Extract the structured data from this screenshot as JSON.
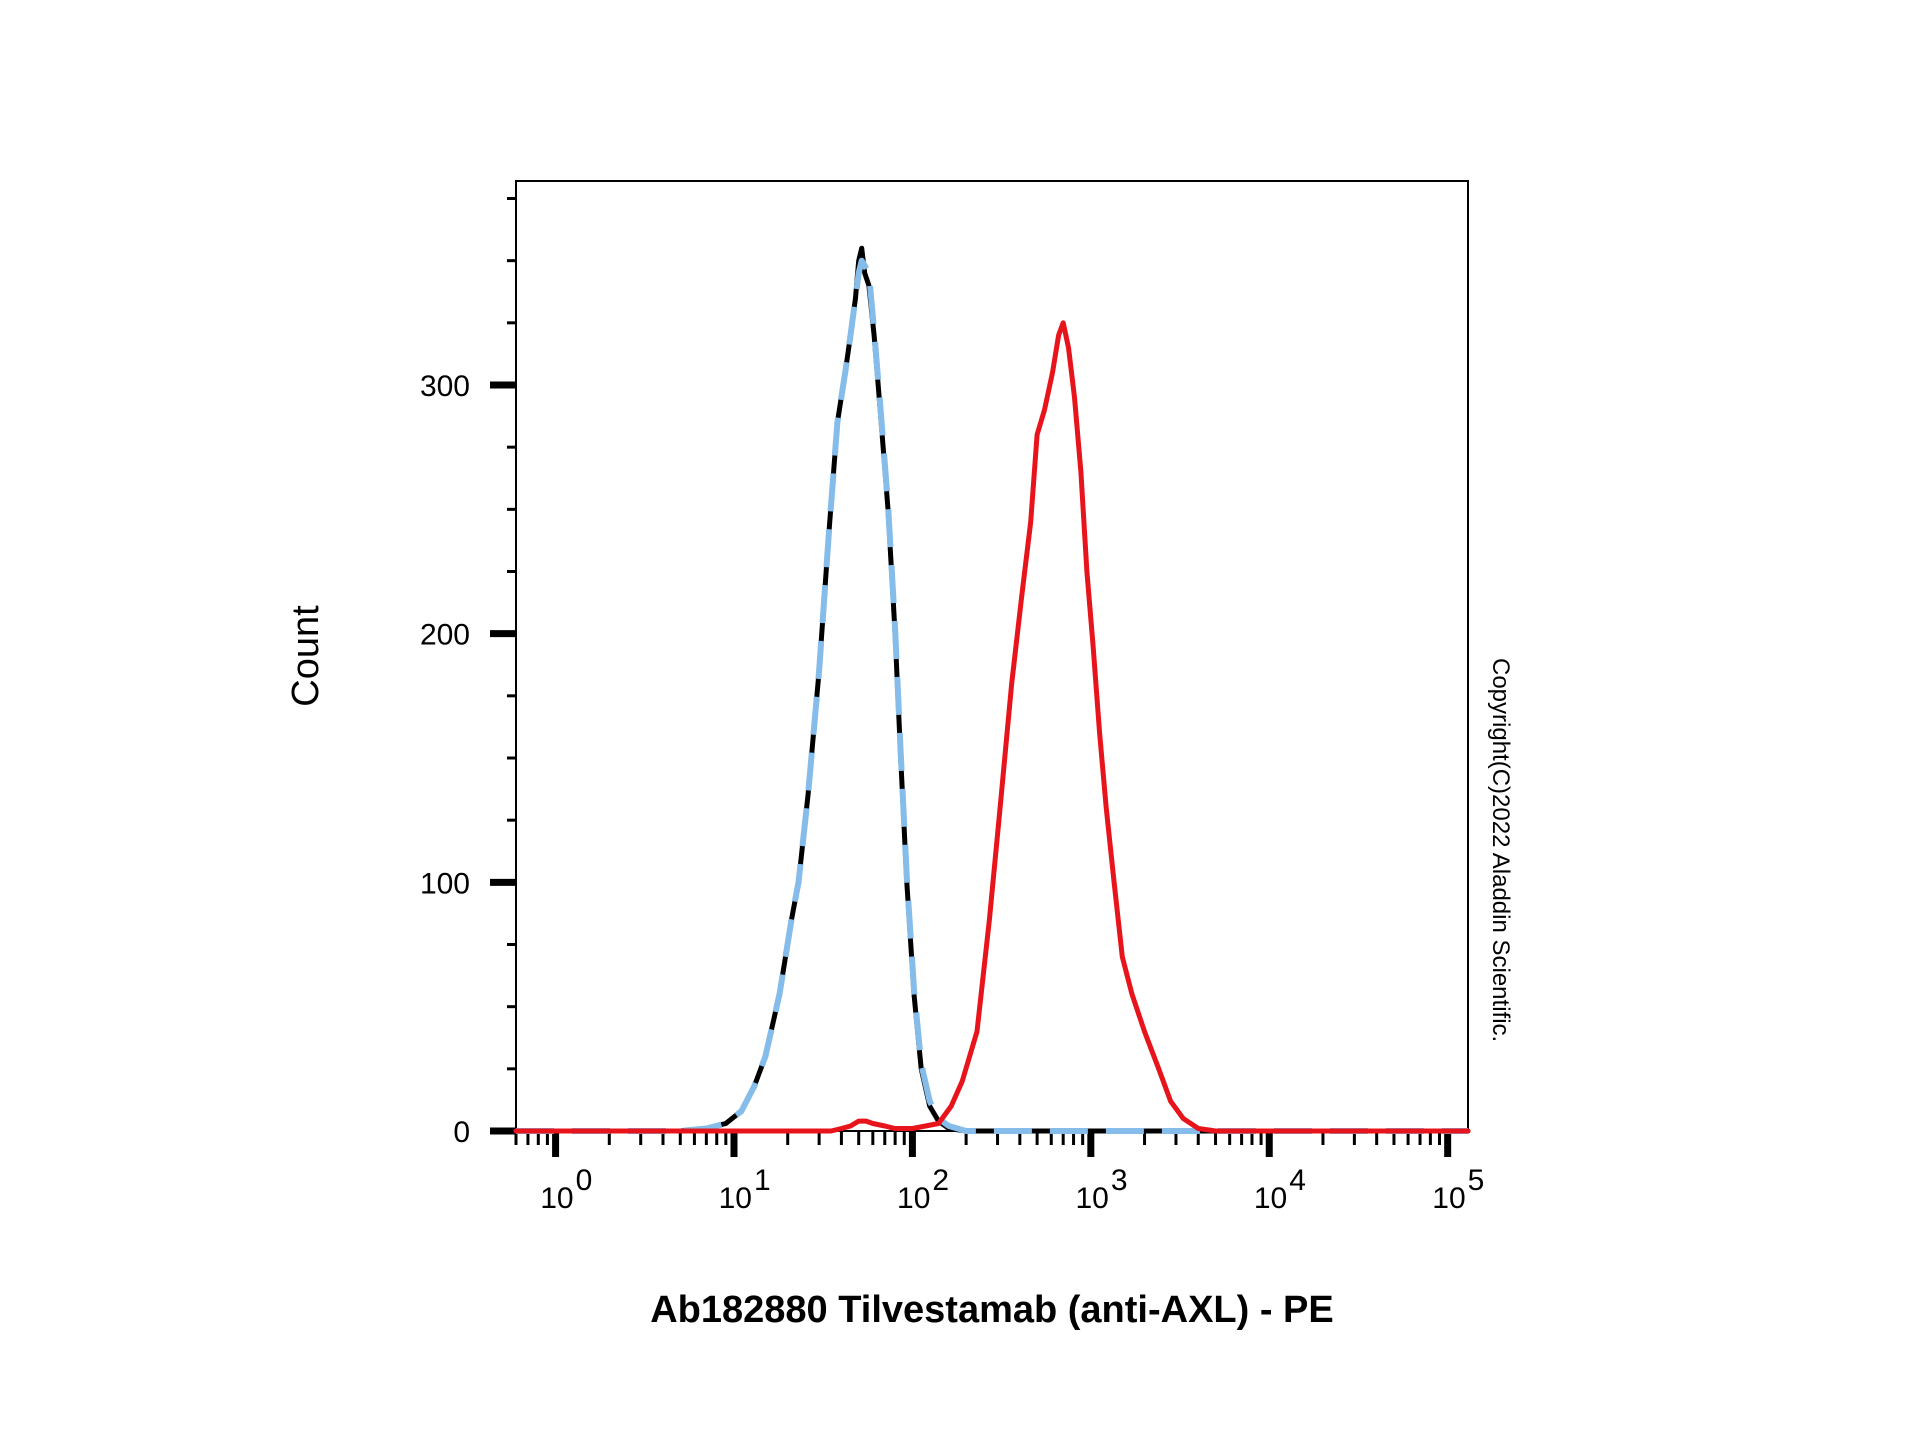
{
  "chart_data": {
    "type": "line",
    "xscale": "log",
    "xlim": [
      0.6,
      130000
    ],
    "ylim": [
      0,
      380
    ],
    "ylabel": "Count",
    "xlabel": "Ab182880 Tilvestamab (anti-AXL) - PE",
    "y_ticks": [
      0,
      100,
      200,
      300
    ],
    "x_ticks": [
      {
        "value": 1,
        "base": "10",
        "exp": "0"
      },
      {
        "value": 10,
        "base": "10",
        "exp": "1"
      },
      {
        "value": 100,
        "base": "10",
        "exp": "2"
      },
      {
        "value": 1000,
        "base": "10",
        "exp": "3"
      },
      {
        "value": 10000,
        "base": "10",
        "exp": "4"
      },
      {
        "value": 100000,
        "base": "10",
        "exp": "5"
      }
    ],
    "grid": false,
    "series": [
      {
        "color": "#000000",
        "style": "solid",
        "points": [
          [
            0.6,
            0
          ],
          [
            5,
            0
          ],
          [
            7,
            1
          ],
          [
            9,
            3
          ],
          [
            11,
            8
          ],
          [
            13,
            18
          ],
          [
            15,
            30
          ],
          [
            18,
            55
          ],
          [
            21,
            85
          ],
          [
            23,
            100
          ],
          [
            26,
            135
          ],
          [
            30,
            185
          ],
          [
            34,
            240
          ],
          [
            38,
            285
          ],
          [
            42,
            305
          ],
          [
            45,
            320
          ],
          [
            48,
            335
          ],
          [
            50,
            350
          ],
          [
            52,
            355
          ],
          [
            54,
            345
          ],
          [
            57,
            340
          ],
          [
            61,
            320
          ],
          [
            66,
            290
          ],
          [
            73,
            250
          ],
          [
            80,
            200
          ],
          [
            86,
            150
          ],
          [
            93,
            100
          ],
          [
            102,
            55
          ],
          [
            112,
            25
          ],
          [
            125,
            10
          ],
          [
            140,
            4
          ],
          [
            160,
            1
          ],
          [
            200,
            0
          ],
          [
            130000,
            0
          ]
        ]
      },
      {
        "color": "#85BCEA",
        "style": "dashed",
        "points": [
          [
            0.6,
            0
          ],
          [
            5,
            0
          ],
          [
            7,
            1
          ],
          [
            9,
            3
          ],
          [
            11,
            8
          ],
          [
            13,
            18
          ],
          [
            15,
            30
          ],
          [
            18,
            55
          ],
          [
            21,
            85
          ],
          [
            23,
            100
          ],
          [
            26,
            135
          ],
          [
            30,
            185
          ],
          [
            34,
            240
          ],
          [
            38,
            285
          ],
          [
            42,
            305
          ],
          [
            45,
            320
          ],
          [
            48,
            335
          ],
          [
            50,
            345
          ],
          [
            52,
            350
          ],
          [
            54,
            348
          ],
          [
            57,
            345
          ],
          [
            61,
            322
          ],
          [
            66,
            292
          ],
          [
            73,
            252
          ],
          [
            80,
            202
          ],
          [
            86,
            152
          ],
          [
            93,
            102
          ],
          [
            102,
            57
          ],
          [
            112,
            27
          ],
          [
            125,
            12
          ],
          [
            140,
            5
          ],
          [
            160,
            2
          ],
          [
            200,
            0
          ],
          [
            130000,
            0
          ]
        ]
      },
      {
        "color": "#E8141C",
        "style": "solid",
        "points": [
          [
            0.6,
            0
          ],
          [
            35,
            0
          ],
          [
            40,
            1
          ],
          [
            45,
            2
          ],
          [
            50,
            4
          ],
          [
            55,
            4
          ],
          [
            60,
            3
          ],
          [
            70,
            2
          ],
          [
            80,
            1
          ],
          [
            100,
            1
          ],
          [
            140,
            3
          ],
          [
            165,
            10
          ],
          [
            190,
            20
          ],
          [
            230,
            40
          ],
          [
            270,
            85
          ],
          [
            310,
            130
          ],
          [
            360,
            180
          ],
          [
            410,
            215
          ],
          [
            460,
            245
          ],
          [
            500,
            280
          ],
          [
            550,
            290
          ],
          [
            610,
            305
          ],
          [
            660,
            320
          ],
          [
            700,
            325
          ],
          [
            750,
            315
          ],
          [
            810,
            295
          ],
          [
            880,
            265
          ],
          [
            950,
            225
          ],
          [
            1030,
            195
          ],
          [
            1120,
            160
          ],
          [
            1220,
            130
          ],
          [
            1350,
            100
          ],
          [
            1500,
            70
          ],
          [
            1700,
            55
          ],
          [
            2000,
            40
          ],
          [
            2400,
            25
          ],
          [
            2800,
            12
          ],
          [
            3300,
            5
          ],
          [
            4000,
            1
          ],
          [
            5000,
            0
          ],
          [
            130000,
            0
          ]
        ]
      }
    ]
  },
  "copyright": "Copyright(C)2022 Aladdin Scientific."
}
